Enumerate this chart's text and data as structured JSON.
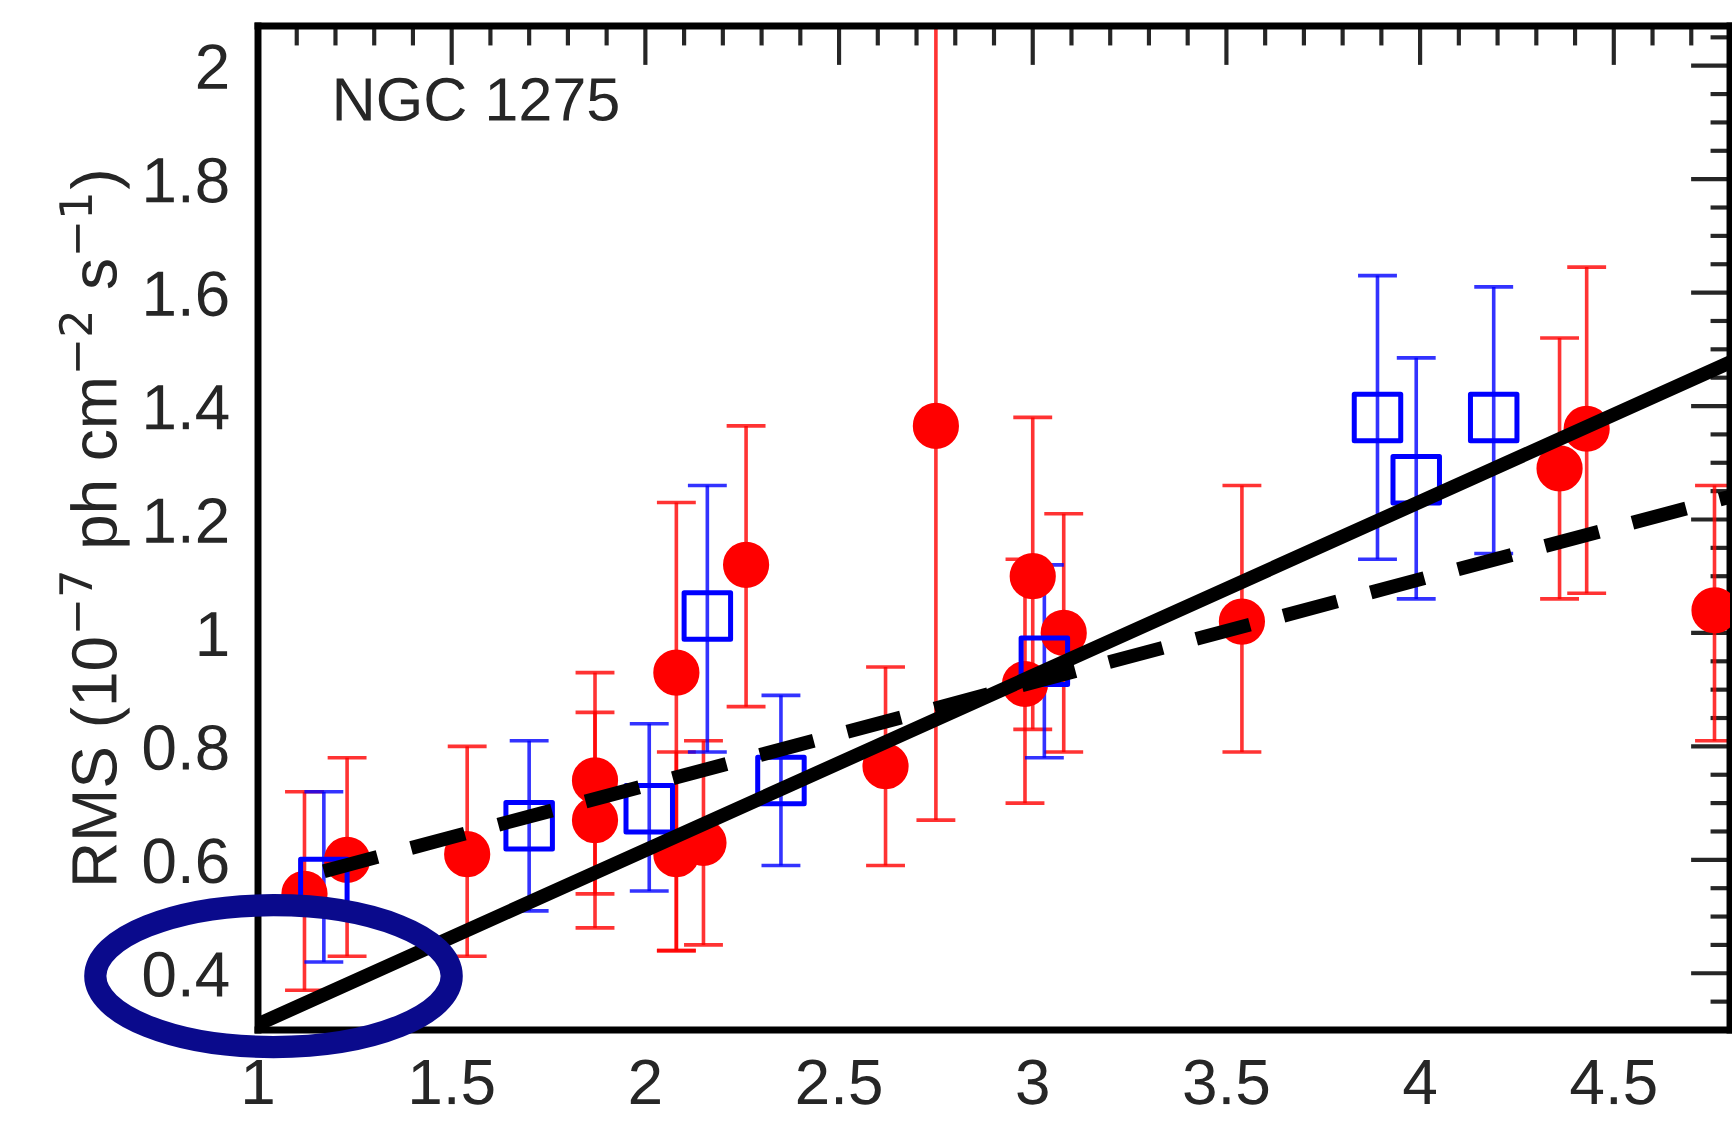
{
  "chart_data": {
    "type": "scatter",
    "ylabel": "RMS (10$^{−7}$ ph cm$^{−2}$ s$^{−1}$)",
    "annotations": [
      "NGC 1275"
    ],
    "xlim": [
      1,
      4.8
    ],
    "ylim": [
      0.3,
      2.07
    ],
    "xticks": [
      1,
      1.5,
      2,
      2.5,
      3,
      3.5,
      4,
      4.5
    ],
    "yticks": [
      {
        "value": 0.4,
        "label": "0.4"
      },
      {
        "value": 0.6,
        "label": "0.6"
      },
      {
        "value": 0.8,
        "label": "0.8"
      },
      {
        "value": 1,
        "label": "1"
      },
      {
        "value": 1.2,
        "label": "1.2"
      },
      {
        "value": 1.4,
        "label": "1.4"
      },
      {
        "value": 1.6,
        "label": "1.6"
      },
      {
        "value": 1.8,
        "label": "1.8"
      },
      {
        "value": 2,
        "label": "2"
      }
    ],
    "grid": false,
    "series": [
      {
        "marker": "circle",
        "color": "#ff0000",
        "x": [
          1.12,
          1.23,
          1.54,
          1.87,
          1.87,
          2.08,
          2.08,
          2.15,
          2.26,
          2.62,
          2.75,
          2.98,
          3.0,
          3.08,
          3.54,
          4.36,
          4.43,
          4.76
        ],
        "values": [
          0.54,
          0.6,
          0.61,
          0.74,
          0.67,
          0.93,
          0.61,
          0.63,
          1.12,
          0.765,
          1.365,
          0.91,
          1.1,
          1.0,
          1.02,
          1.29,
          1.36,
          1.04
        ],
        "errors": [
          [
            0.37,
            0.72
          ],
          [
            0.43,
            0.78
          ],
          [
            0.43,
            0.8
          ],
          [
            0.54,
            0.93
          ],
          [
            0.48,
            0.86
          ],
          [
            0.44,
            1.23
          ],
          [
            0.44,
            0.79
          ],
          [
            0.45,
            0.81
          ],
          [
            0.87,
            1.365
          ],
          [
            0.59,
            0.94
          ],
          [
            0.67,
            2.07
          ],
          [
            0.7,
            1.13
          ],
          [
            0.83,
            1.38
          ],
          [
            0.79,
            1.21
          ],
          [
            0.79,
            1.26
          ],
          [
            1.06,
            1.52
          ],
          [
            1.07,
            1.645
          ],
          [
            0.81,
            1.26
          ]
        ]
      },
      {
        "marker": "square",
        "color": "#0000ff",
        "x": [
          1.17,
          1.7,
          2.01,
          2.16,
          2.35,
          3.03,
          3.89,
          3.99,
          4.19
        ],
        "values": [
          0.56,
          0.66,
          0.69,
          1.03,
          0.74,
          0.95,
          1.38,
          1.27,
          1.38
        ],
        "errors": [
          [
            0.42,
            0.72
          ],
          [
            0.51,
            0.81
          ],
          [
            0.545,
            0.84
          ],
          [
            0.79,
            1.26
          ],
          [
            0.59,
            0.89
          ],
          [
            0.78,
            1.12
          ],
          [
            1.13,
            1.63
          ],
          [
            1.06,
            1.485
          ],
          [
            1.14,
            1.61
          ]
        ]
      },
      {
        "type": "line",
        "line_style": "solid",
        "color": "#000000",
        "x": [
          1,
          4.8
        ],
        "values": [
          0.31,
          1.477
        ]
      },
      {
        "type": "line",
        "line_style": "dashed",
        "color": "#000000",
        "x": [
          1.17,
          4.8
        ],
        "values": [
          0.58,
          1.24
        ]
      }
    ]
  }
}
